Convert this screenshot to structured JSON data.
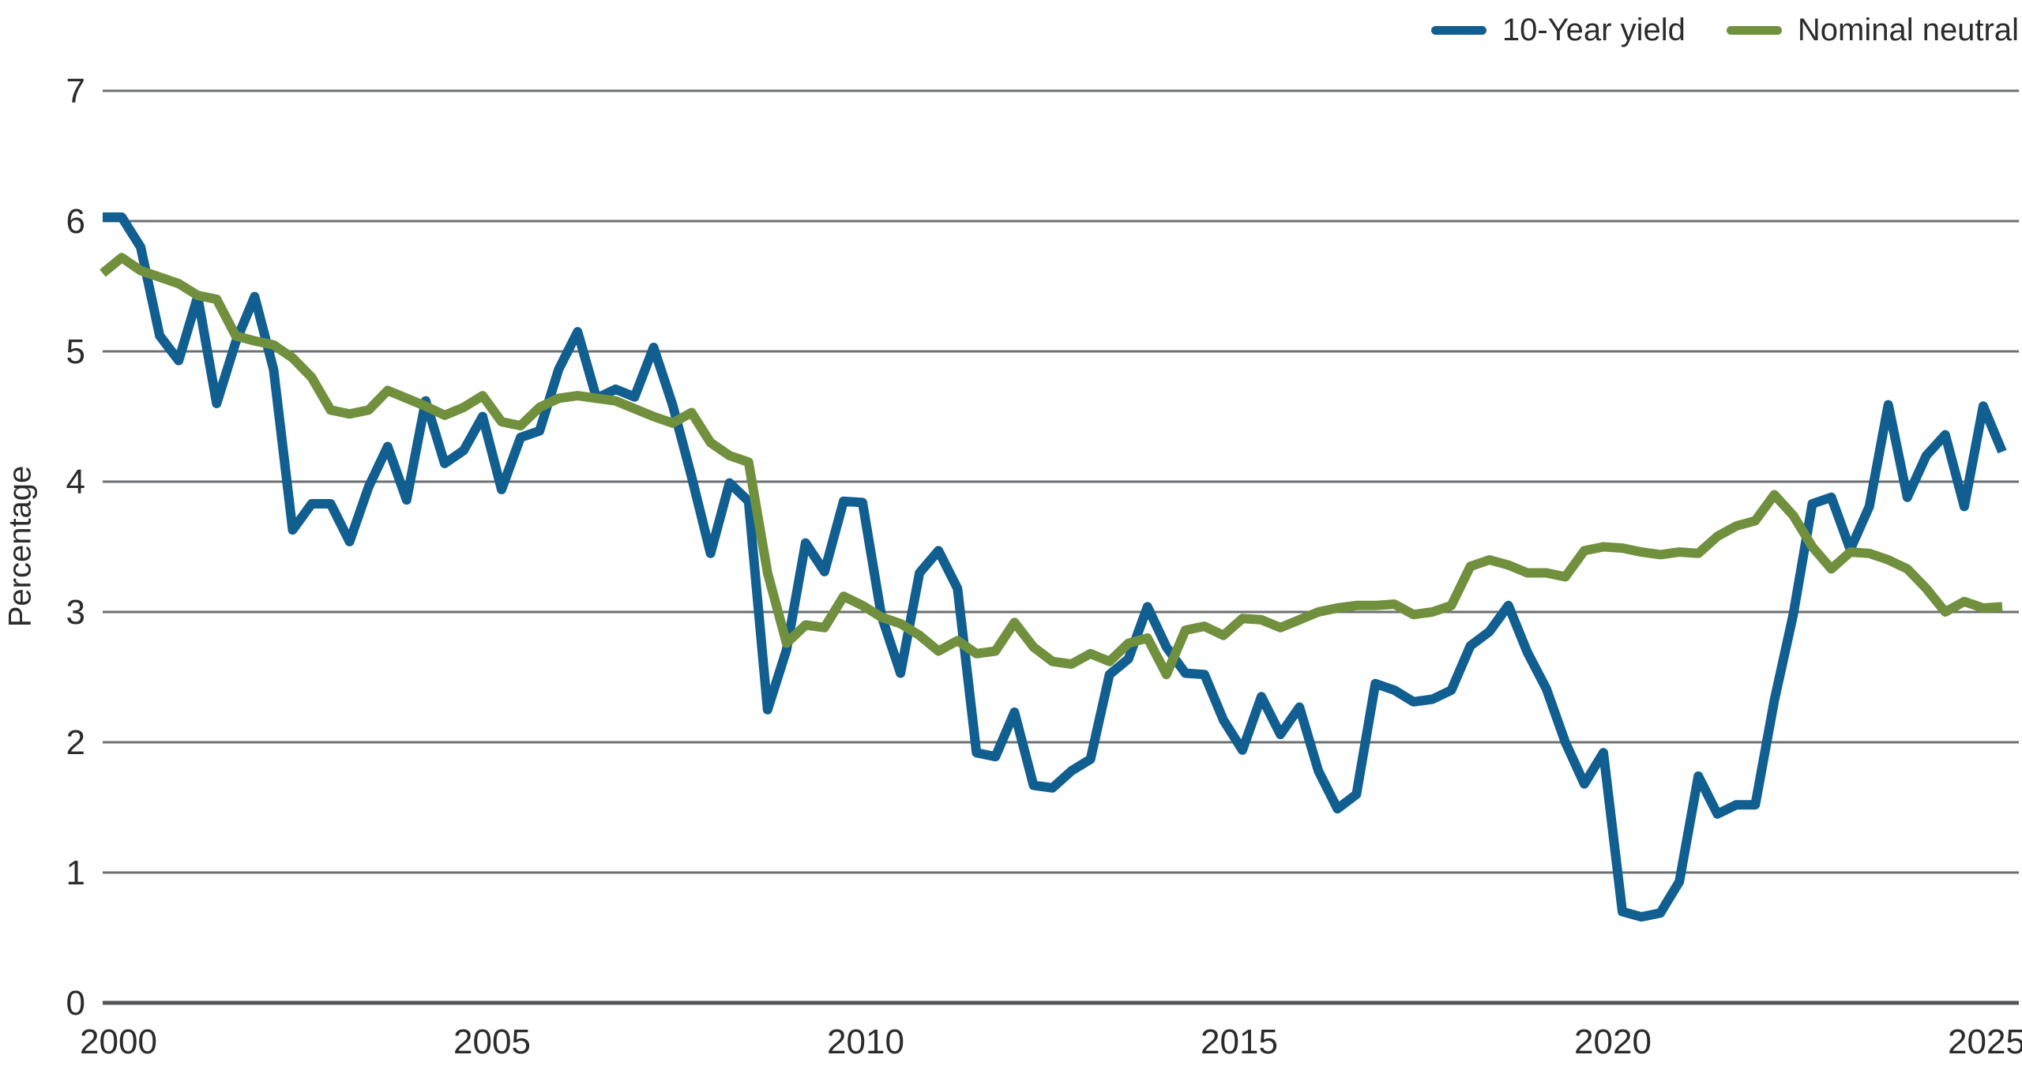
{
  "chart_data": {
    "type": "line",
    "title": "",
    "ylabel": "Percentage",
    "xlabel": "",
    "x_range": {
      "start": "2000Q1",
      "end": "2025Q1",
      "frequency": "quarterly",
      "points": 101
    },
    "x_tick_labels": [
      "2000",
      "2005",
      "2010",
      "2015",
      "2020",
      "2025"
    ],
    "y_ticks": [
      0,
      1,
      2,
      3,
      4,
      5,
      6,
      7
    ],
    "ylim": [
      0,
      7
    ],
    "grid": "horizontal",
    "legend_position": "top-right",
    "series": [
      {
        "name": "10-Year yield",
        "color": "#115E90",
        "values": [
          6.03,
          6.03,
          5.8,
          5.12,
          4.93,
          5.42,
          4.6,
          5.07,
          5.42,
          4.86,
          3.63,
          3.83,
          3.83,
          3.54,
          3.96,
          4.27,
          3.86,
          4.62,
          4.14,
          4.24,
          4.5,
          3.94,
          4.34,
          4.39,
          4.86,
          5.15,
          4.64,
          4.71,
          4.65,
          5.03,
          4.59,
          4.04,
          3.45,
          3.99,
          3.85,
          2.25,
          2.71,
          3.53,
          3.31,
          3.85,
          3.84,
          2.97,
          2.53,
          3.3,
          3.47,
          3.18,
          1.92,
          1.89,
          2.23,
          1.67,
          1.65,
          1.78,
          1.87,
          2.52,
          2.64,
          3.04,
          2.73,
          2.53,
          2.52,
          2.17,
          1.94,
          2.35,
          2.06,
          2.27,
          1.78,
          1.49,
          1.6,
          2.45,
          2.4,
          2.31,
          2.33,
          2.4,
          2.74,
          2.85,
          3.05,
          2.69,
          2.41,
          2.0,
          1.68,
          1.92,
          0.7,
          0.66,
          0.69,
          0.93,
          1.74,
          1.45,
          1.52,
          1.52,
          2.32,
          2.98,
          3.83,
          3.88,
          3.48,
          3.81,
          4.59,
          3.88,
          4.2,
          4.36,
          3.81,
          4.58,
          4.23
        ]
      },
      {
        "name": "Nominal neutral",
        "color": "#71903E",
        "values": [
          5.6,
          5.72,
          5.62,
          5.57,
          5.52,
          5.43,
          5.4,
          5.12,
          5.08,
          5.05,
          4.95,
          4.8,
          4.55,
          4.52,
          4.55,
          4.7,
          4.64,
          4.58,
          4.51,
          4.57,
          4.66,
          4.46,
          4.43,
          4.57,
          4.64,
          4.66,
          4.64,
          4.62,
          4.56,
          4.5,
          4.45,
          4.53,
          4.3,
          4.2,
          4.15,
          3.3,
          2.76,
          2.9,
          2.88,
          3.12,
          3.05,
          2.96,
          2.91,
          2.82,
          2.7,
          2.78,
          2.68,
          2.7,
          2.92,
          2.73,
          2.62,
          2.6,
          2.68,
          2.62,
          2.76,
          2.8,
          2.52,
          2.86,
          2.89,
          2.82,
          2.95,
          2.94,
          2.88,
          2.94,
          3.0,
          3.03,
          3.05,
          3.05,
          3.06,
          2.98,
          3.0,
          3.05,
          3.35,
          3.4,
          3.36,
          3.3,
          3.3,
          3.27,
          3.47,
          3.5,
          3.49,
          3.46,
          3.44,
          3.46,
          3.45,
          3.58,
          3.66,
          3.7,
          3.9,
          3.74,
          3.5,
          3.33,
          3.46,
          3.45,
          3.4,
          3.33,
          3.18,
          3.0,
          3.08,
          3.03,
          3.04
        ]
      }
    ]
  },
  "colors": {
    "gridline": "#6E6F72",
    "axis_line": "#54565A",
    "tick_text": "#2B2B2B",
    "background": "#FFFFFF"
  }
}
